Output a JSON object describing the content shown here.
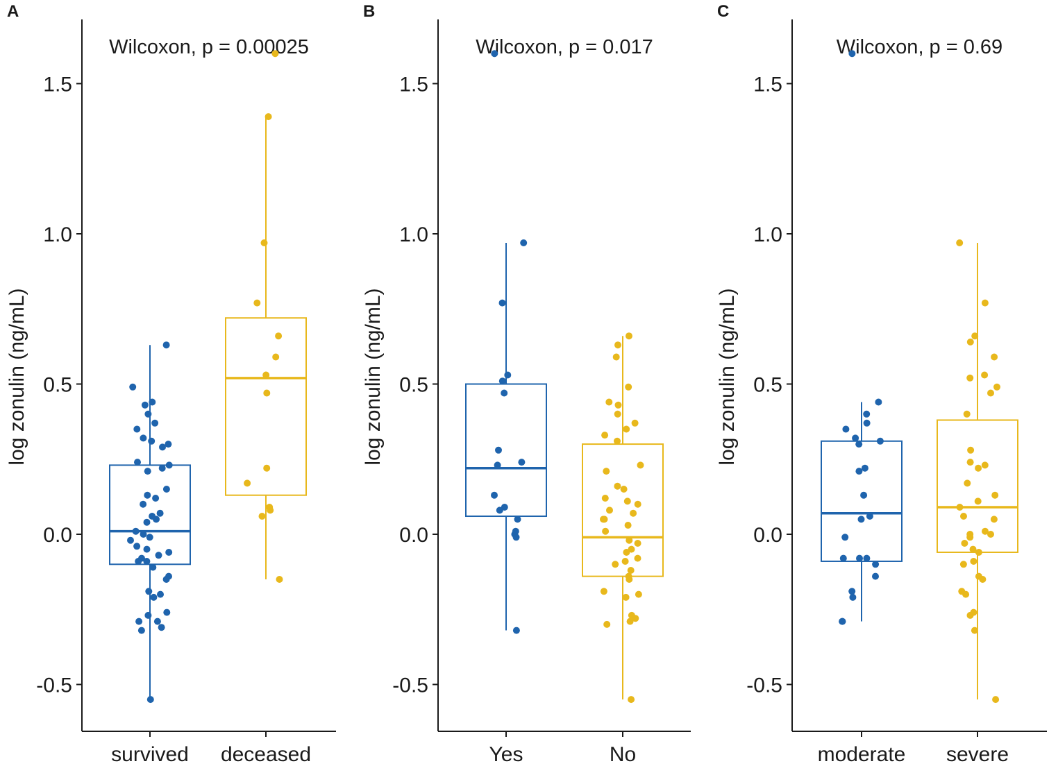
{
  "colors": {
    "group1": "#1f64ad",
    "group2": "#e8b81c",
    "axis": "#1a1a1a"
  },
  "chart_data": [
    {
      "type": "box",
      "panel_label": "A",
      "annotation": "Wilcoxon, p = 0.00025",
      "ylabel": "log zonulin (ng/mL)",
      "ylim": [
        -0.65,
        1.7
      ],
      "yticks": [
        -0.5,
        0.0,
        0.5,
        1.0,
        1.5
      ],
      "ytick_labels": [
        "-0.5",
        "0.0",
        "0.5",
        "1.0",
        "1.5"
      ],
      "categories": [
        "survived",
        "deceased"
      ],
      "series": [
        {
          "name": "survived",
          "box": {
            "whisker_low": -0.55,
            "q1": -0.1,
            "median": 0.01,
            "q3": 0.23,
            "whisker_high": 0.63
          },
          "points": [
            0.63,
            0.49,
            0.44,
            0.43,
            0.4,
            0.37,
            0.35,
            0.32,
            0.31,
            0.3,
            0.29,
            0.24,
            0.23,
            0.22,
            0.21,
            0.15,
            0.13,
            0.12,
            0.1,
            0.07,
            0.06,
            0.05,
            0.04,
            0.01,
            0.0,
            -0.01,
            -0.02,
            -0.04,
            -0.05,
            -0.06,
            -0.07,
            -0.08,
            -0.09,
            -0.09,
            -0.11,
            -0.14,
            -0.15,
            -0.19,
            -0.2,
            -0.21,
            -0.26,
            -0.27,
            -0.29,
            -0.29,
            -0.31,
            -0.32,
            -0.55
          ]
        },
        {
          "name": "deceased",
          "box": {
            "whisker_low": -0.15,
            "q1": 0.13,
            "median": 0.52,
            "q3": 0.72,
            "whisker_high": 1.39
          },
          "points": [
            1.6,
            1.39,
            0.97,
            0.77,
            0.66,
            0.59,
            0.53,
            0.47,
            0.22,
            0.17,
            0.09,
            0.08,
            0.06,
            -0.15
          ]
        }
      ]
    },
    {
      "type": "box",
      "panel_label": "B",
      "annotation": "Wilcoxon, p = 0.017",
      "ylabel": "log zonulin (ng/mL)",
      "ylim": [
        -0.65,
        1.7
      ],
      "yticks": [
        -0.5,
        0.0,
        0.5,
        1.0,
        1.5
      ],
      "ytick_labels": [
        "-0.5",
        "0.0",
        "0.5",
        "1.0",
        "1.5"
      ],
      "categories": [
        "Yes",
        "No"
      ],
      "series": [
        {
          "name": "Yes",
          "box": {
            "whisker_low": -0.32,
            "q1": 0.06,
            "median": 0.22,
            "q3": 0.5,
            "whisker_high": 0.97
          },
          "points": [
            1.6,
            0.97,
            0.77,
            0.53,
            0.51,
            0.47,
            0.28,
            0.24,
            0.23,
            0.13,
            0.09,
            0.08,
            0.05,
            0.0,
            -0.01,
            0.01,
            -0.32
          ]
        },
        {
          "name": "No",
          "box": {
            "whisker_low": -0.55,
            "q1": -0.14,
            "median": -0.01,
            "q3": 0.3,
            "whisker_high": 0.66
          },
          "points": [
            0.66,
            0.63,
            0.59,
            0.49,
            0.44,
            0.43,
            0.4,
            0.37,
            0.35,
            0.33,
            0.31,
            0.23,
            0.21,
            0.16,
            0.15,
            0.12,
            0.11,
            0.1,
            0.08,
            0.07,
            0.05,
            0.05,
            0.03,
            0.01,
            -0.02,
            -0.03,
            -0.05,
            -0.06,
            -0.08,
            -0.09,
            -0.1,
            -0.12,
            -0.14,
            -0.15,
            -0.19,
            -0.2,
            -0.21,
            -0.27,
            -0.28,
            -0.29,
            -0.3,
            -0.55
          ]
        }
      ]
    },
    {
      "type": "box",
      "panel_label": "C",
      "annotation": "Wilcoxon, p = 0.69",
      "ylabel": "log zonulin (ng/mL)",
      "ylim": [
        -0.65,
        1.7
      ],
      "yticks": [
        -0.5,
        0.0,
        0.5,
        1.0,
        1.5
      ],
      "ytick_labels": [
        "-0.5",
        "0.0",
        "0.5",
        "1.0",
        "1.5"
      ],
      "categories": [
        "moderate",
        "severe"
      ],
      "series": [
        {
          "name": "moderate",
          "box": {
            "whisker_low": -0.29,
            "q1": -0.09,
            "median": 0.07,
            "q3": 0.31,
            "whisker_high": 0.44
          },
          "points": [
            1.6,
            0.44,
            0.4,
            0.37,
            0.35,
            0.32,
            0.31,
            0.3,
            0.22,
            0.21,
            0.13,
            0.06,
            0.05,
            -0.01,
            -0.08,
            -0.08,
            -0.08,
            -0.1,
            -0.14,
            -0.19,
            -0.21,
            -0.29,
            -0.29
          ]
        },
        {
          "name": "severe",
          "box": {
            "whisker_low": -0.55,
            "q1": -0.06,
            "median": 0.09,
            "q3": 0.38,
            "whisker_high": 0.97
          },
          "points": [
            0.97,
            0.77,
            0.66,
            0.64,
            0.59,
            0.53,
            0.52,
            0.49,
            0.47,
            0.4,
            0.28,
            0.24,
            0.23,
            0.22,
            0.17,
            0.13,
            0.11,
            0.09,
            0.06,
            0.05,
            0.01,
            0.0,
            0.0,
            -0.01,
            -0.03,
            -0.05,
            -0.06,
            -0.09,
            -0.1,
            -0.14,
            -0.15,
            -0.19,
            -0.2,
            -0.26,
            -0.27,
            -0.32,
            -0.55
          ]
        }
      ]
    }
  ]
}
